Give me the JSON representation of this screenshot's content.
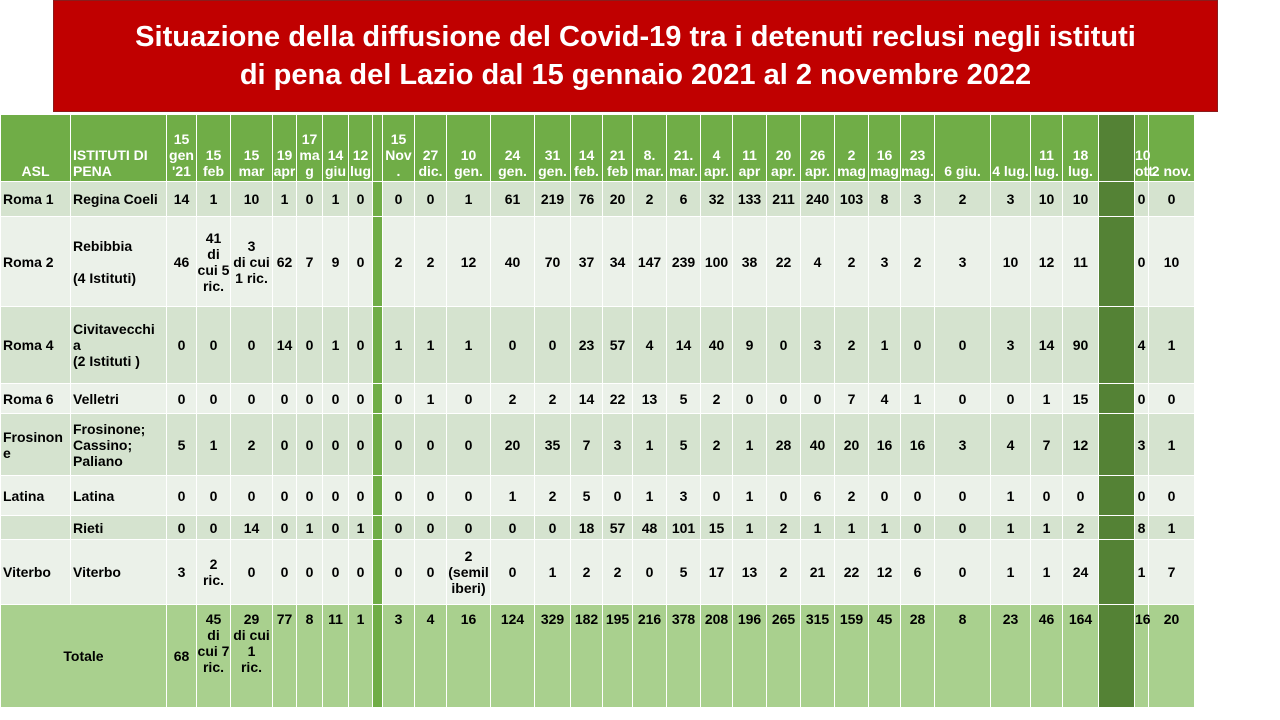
{
  "title": {
    "line1": "Situazione della diffusione del Covid-19 tra i detenuti reclusi negli istituti",
    "line2": "di pena del Lazio dal 15 gennaio 2021 al 2 novembre 2022"
  },
  "header": {
    "asl": "ASL",
    "istituti": "ISTITUTI DI PENA",
    "dates": [
      "15 gen '21",
      "15 feb",
      "15 mar",
      "19 apr",
      "17 ma g",
      "14 giu",
      "12 lug",
      "15 Nov .",
      "27 dic.",
      "10 gen.",
      "24 gen.",
      "31 gen.",
      "14 feb.",
      "21 feb",
      "8. mar.",
      "21. mar.",
      "4 apr.",
      "11 apr",
      "20 apr.",
      "26 apr.",
      "2 mag",
      "16 mag",
      "23 mag.",
      "6 giu.",
      "4 lug.",
      "11 lug.",
      "18 lug.",
      "10 ott.",
      "2 nov."
    ]
  },
  "rows": [
    {
      "asl": "Roma 1",
      "inst": "Regina Coeli",
      "values": [
        "14",
        "1",
        "10",
        "1",
        "0",
        "1",
        "0",
        "0",
        "0",
        "1",
        "61",
        "219",
        "76",
        "20",
        "2",
        "6",
        "32",
        "133",
        "211",
        "240",
        "103",
        "8",
        "3",
        "2",
        "3",
        "10",
        "10",
        "0",
        "0"
      ]
    },
    {
      "asl": "Roma 2",
      "inst": "Rebibbia\n\n(4 Istituti)",
      "values": [
        "46",
        "41\ndi\ncui 5\nric.",
        "3\ndi cui\n1 ric.",
        "62",
        "7",
        "9",
        "0",
        "2",
        "2",
        "12",
        "40",
        "70",
        "37",
        "34",
        "147",
        "239",
        "100",
        "38",
        "22",
        "4",
        "2",
        "3",
        "2",
        "3",
        "10",
        "12",
        "11",
        "0",
        "10"
      ]
    },
    {
      "asl": "Roma 4",
      "inst": "Civitavecchi\na\n(2 Istituti )",
      "values": [
        "0",
        "0",
        "0",
        "14",
        "0",
        "1",
        "0",
        "1",
        "1",
        "1",
        "0",
        "0",
        "23",
        "57",
        "4",
        "14",
        "40",
        "9",
        "0",
        "3",
        "2",
        "1",
        "0",
        "0",
        "3",
        "14",
        "90",
        "4",
        "1"
      ]
    },
    {
      "asl": "Roma 6",
      "inst": "Velletri",
      "values": [
        "0",
        "0",
        "0",
        "0",
        "0",
        "0",
        "0",
        "0",
        "1",
        "0",
        "2",
        "2",
        "14",
        "22",
        "13",
        "5",
        "2",
        "0",
        "0",
        "0",
        "7",
        "4",
        "1",
        "0",
        "0",
        "1",
        "15",
        "0",
        "0"
      ]
    },
    {
      "asl": "Frosinon\ne",
      "inst": "Frosinone;\nCassino;\nPaliano",
      "values": [
        "5",
        "1",
        "2",
        "0",
        "0",
        "0",
        "0",
        "0",
        "0",
        "0",
        "20",
        "35",
        "7",
        "3",
        "1",
        "5",
        "2",
        "1",
        "28",
        "40",
        "20",
        "16",
        "16",
        "3",
        "4",
        "7",
        "12",
        "3",
        "1"
      ]
    },
    {
      "asl": "Latina",
      "inst": "Latina",
      "values": [
        "0",
        "0",
        "0",
        "0",
        "0",
        "0",
        "0",
        "0",
        "0",
        "0",
        "1",
        "2",
        "5",
        "0",
        "1",
        "3",
        "0",
        "1",
        "0",
        "6",
        "2",
        "0",
        "0",
        "0",
        "1",
        "0",
        "0",
        "0",
        "0"
      ]
    },
    {
      "asl": "",
      "inst": "Rieti",
      "values": [
        "0",
        "0",
        "14",
        "0",
        "1",
        "0",
        "1",
        "0",
        "0",
        "0",
        "0",
        "0",
        "18",
        "57",
        "48",
        "101",
        "15",
        "1",
        "2",
        "1",
        "1",
        "1",
        "0",
        "0",
        "1",
        "1",
        "2",
        "8",
        "1"
      ]
    },
    {
      "asl": "Viterbo",
      "inst": "Viterbo",
      "values": [
        "3",
        "2\nric.",
        "0",
        "0",
        "0",
        "0",
        "0",
        "0",
        "0",
        "2\n(semil\niberi)",
        "0",
        "1",
        "2",
        "2",
        "0",
        "5",
        "17",
        "13",
        "2",
        "21",
        "22",
        "12",
        "6",
        "0",
        "1",
        "1",
        "24",
        "1",
        "7"
      ]
    }
  ],
  "total": {
    "label": "Totale",
    "values": [
      "68",
      "45\ndi\ncui 7\nric.",
      "29\ndi cui\n1\nric.",
      "77",
      "8",
      "11",
      "1",
      "3",
      "4",
      "16",
      "124",
      "329",
      "182",
      "195",
      "216",
      "378",
      "208",
      "196",
      "265",
      "315",
      "159",
      "45",
      "28",
      "8",
      "23",
      "46",
      "164",
      "16",
      "20"
    ]
  },
  "colors": {
    "title_bg": "#c00000",
    "header_bg": "#70ad47",
    "row_dark": "#d5e3cf",
    "row_light": "#ebf1e9",
    "total_bg": "#a9d08e"
  }
}
